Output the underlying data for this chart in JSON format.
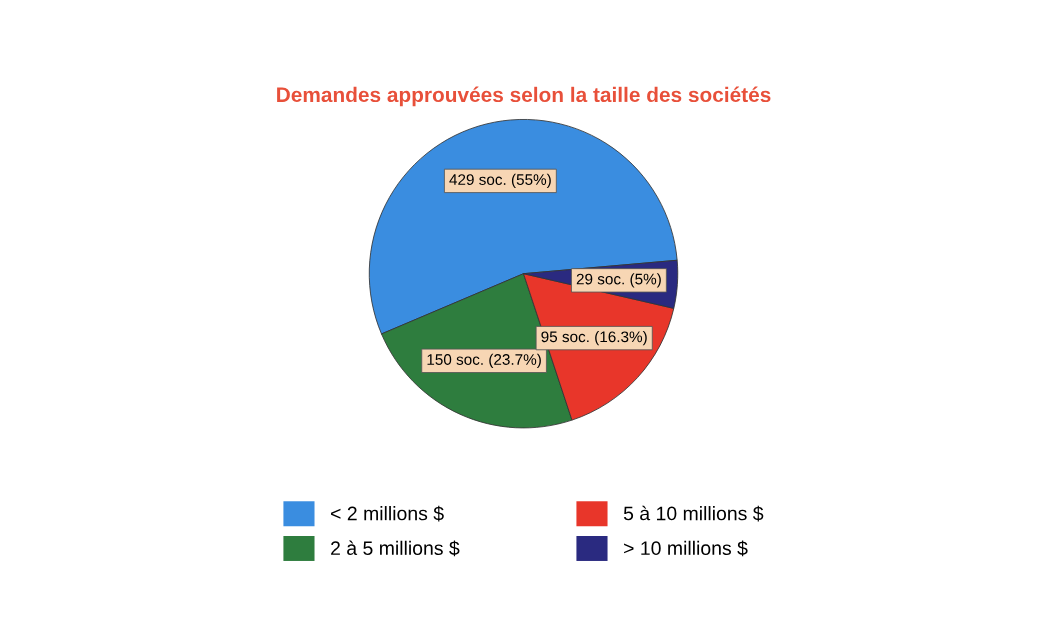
{
  "chart_data": {
    "type": "pie",
    "title": "Demandes approuvées selon la taille des sociétés",
    "categories": [
      "< 2 millions $",
      "2 à 5 millions $",
      "5 à 10 millions $",
      "> 10 millions $"
    ],
    "values": [
      55,
      23.7,
      16.3,
      5
    ],
    "value_labels": [
      "429 soc. (55%)",
      "150 soc. (23.7%)",
      "95 soc. (16.3%)",
      "29 soc. (5%)"
    ],
    "colors": [
      "#3a8de0",
      "#2e7d3e",
      "#e8362a",
      "#2a2a80"
    ],
    "legend": "bottom"
  }
}
